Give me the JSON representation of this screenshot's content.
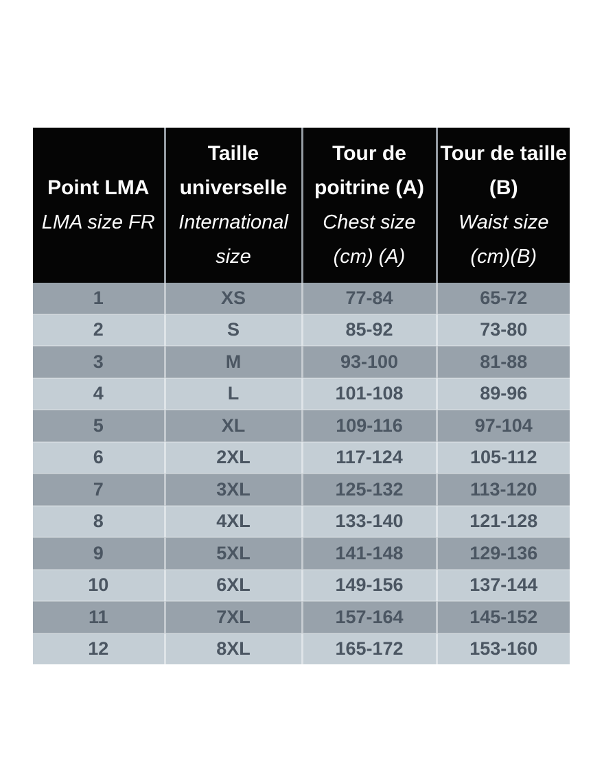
{
  "chart_data": {
    "type": "table",
    "title": "",
    "columns": [
      {
        "title_fr": "Point LMA",
        "title_en": "LMA size FR"
      },
      {
        "title_fr": "Taille universelle",
        "title_en": "International size"
      },
      {
        "title_fr": "Tour de poitrine (A)",
        "title_en": "Chest size (cm) (A)"
      },
      {
        "title_fr": "Tour de taille (B)",
        "title_en": "Waist size (cm)(B)"
      }
    ],
    "rows": [
      [
        "1",
        "XS",
        "77-84",
        "65-72"
      ],
      [
        "2",
        "S",
        "85-92",
        "73-80"
      ],
      [
        "3",
        "M",
        "93-100",
        "81-88"
      ],
      [
        "4",
        "L",
        "101-108",
        "89-96"
      ],
      [
        "5",
        "XL",
        "109-116",
        "97-104"
      ],
      [
        "6",
        "2XL",
        "117-124",
        "105-112"
      ],
      [
        "7",
        "3XL",
        "125-132",
        "113-120"
      ],
      [
        "8",
        "4XL",
        "133-140",
        "121-128"
      ],
      [
        "9",
        "5XL",
        "141-148",
        "129-136"
      ],
      [
        "10",
        "6XL",
        "149-156",
        "137-144"
      ],
      [
        "11",
        "7XL",
        "157-164",
        "145-152"
      ],
      [
        "12",
        "8XL",
        "165-172",
        "153-160"
      ]
    ],
    "colors": {
      "header_bg": "#050505",
      "header_text": "#fcfcfc",
      "row_dark": "#98a2ab",
      "row_light": "#c4ced5",
      "cell_text": "#4b5662",
      "header_divider": "#959ca3"
    }
  }
}
